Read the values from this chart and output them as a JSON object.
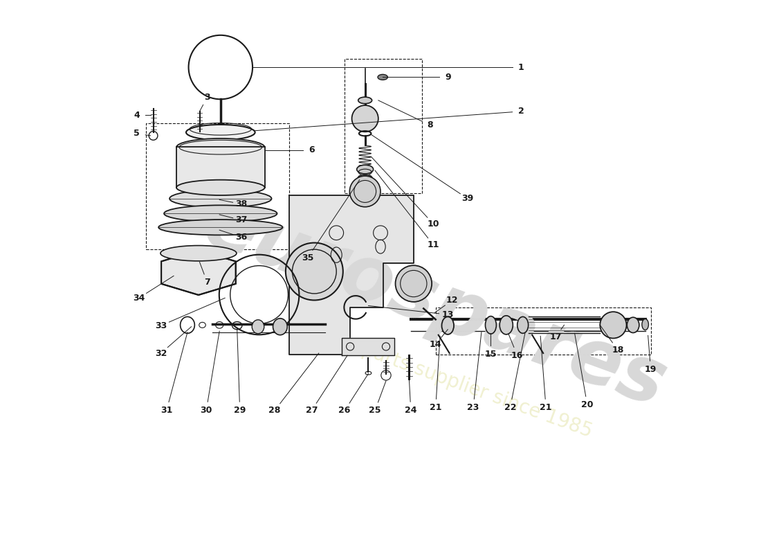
{
  "bg_color": "#ffffff",
  "line_color": "#1a1a1a",
  "label_color": "#1a1a1a",
  "watermark_color": "#d8d8d8",
  "watermark_text_color": "#f0f0d0"
}
